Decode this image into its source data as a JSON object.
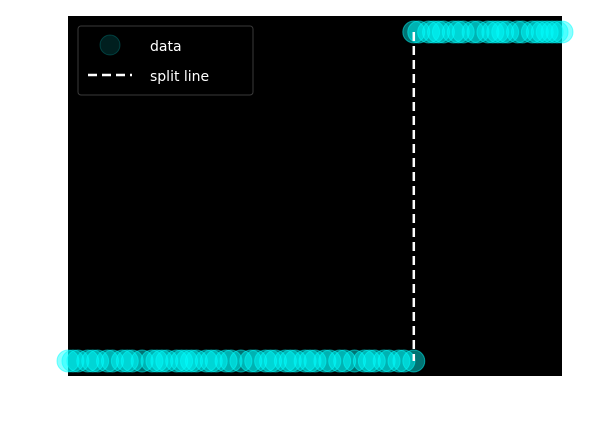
{
  "chart_data": {
    "type": "scatter",
    "xlim": [
      0,
      100
    ],
    "ylim": [
      0,
      1
    ],
    "grid": false,
    "legend_placement": "top-left",
    "background_color": "#000000",
    "point_color": "#00ffff",
    "split_line_color": "#ffffff",
    "split_x": 70,
    "series": [
      {
        "name": "data",
        "x": [
          0,
          1,
          2,
          4,
          5,
          6,
          8,
          9,
          11,
          12,
          13,
          15,
          17,
          18,
          19,
          20,
          22,
          23,
          24,
          25,
          26,
          28,
          29,
          30,
          32,
          33,
          35,
          37,
          38,
          40,
          41,
          42,
          44,
          45,
          46,
          48,
          49,
          50,
          52,
          53,
          55,
          56,
          58,
          60,
          61,
          62,
          64,
          65,
          67,
          68,
          70,
          70,
          71,
          73,
          74,
          75,
          76,
          78,
          79,
          80,
          82,
          83,
          85,
          86,
          87,
          88,
          89,
          91,
          92,
          94,
          95,
          96,
          97,
          98,
          99,
          100
        ],
        "y": [
          0,
          0,
          0,
          0,
          0,
          0,
          0,
          0,
          0,
          0,
          0,
          0,
          0,
          0,
          0,
          0,
          0,
          0,
          0,
          0,
          0,
          0,
          0,
          0,
          0,
          0,
          0,
          0,
          0,
          0,
          0,
          0,
          0,
          0,
          0,
          0,
          0,
          0,
          0,
          0,
          0,
          0,
          0,
          0,
          0,
          0,
          0,
          0,
          0,
          0,
          0,
          1,
          1,
          1,
          1,
          1,
          1,
          1,
          1,
          1,
          1,
          1,
          1,
          1,
          1,
          1,
          1,
          1,
          1,
          1,
          1,
          1,
          1,
          1,
          1,
          1
        ]
      }
    ],
    "legend": [
      {
        "label": "data",
        "marker": "circle"
      },
      {
        "label": "split line",
        "marker": "dashed-line"
      }
    ]
  }
}
